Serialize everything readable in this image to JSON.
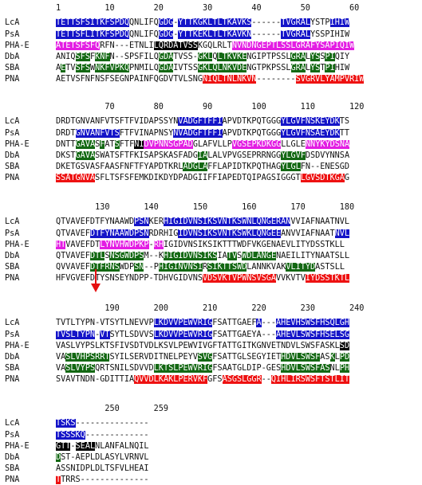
{
  "colors": {
    "b": "#1414c8",
    "g": "#136813",
    "m": "#e31de3",
    "k": "#000000",
    "r": "#ee1111"
  },
  "blocks": [
    {
      "ruler": "1         10        20        30        40        50        60",
      "rows": [
        {
          "name": "LcA",
          "segs": [
            [
              "b",
              "TETTSFSITKFSPDQ"
            ],
            [
              "n",
              "QNLIFQ"
            ],
            [
              "b",
              "GDG"
            ],
            [
              "n",
              "-"
            ],
            [
              "b",
              "YTTKGKLTLTKAVKS"
            ],
            [
              "n",
              "------"
            ],
            [
              "b",
              "TVGRAL"
            ],
            [
              "n",
              "YSTP"
            ],
            [
              "b",
              "IHIW"
            ]
          ]
        },
        {
          "name": "PsA",
          "segs": [
            [
              "b",
              "TETTSFLITKFSPDQ"
            ],
            [
              "n",
              "QNLIFQ"
            ],
            [
              "b",
              "GDG"
            ],
            [
              "n",
              "-"
            ],
            [
              "b",
              "YTTKEKLTLTKAVKN"
            ],
            [
              "n",
              "------"
            ],
            [
              "b",
              "TVGRAL"
            ],
            [
              "n",
              "YSSPIHIW"
            ]
          ]
        },
        {
          "name": "PHA-E",
          "segs": [
            [
              "m",
              "ATETSFSFQ"
            ],
            [
              "n",
              "RFN---ETNLI"
            ],
            [
              "k",
              "LQRDATVSS"
            ],
            [
              "n",
              "KGQLRLT"
            ],
            [
              "m",
              "NVNDNGEPTLSS"
            ],
            [
              "m",
              "LGRAFYSAPIQIW"
            ]
          ]
        },
        {
          "name": "DbA",
          "segs": [
            [
              "n",
              "ANIQ"
            ],
            [
              "g",
              "SFS"
            ],
            [
              "n",
              "F"
            ],
            [
              "g",
              "KNF"
            ],
            [
              "n",
              "N--SPSFILQ"
            ],
            [
              "g",
              "GDA"
            ],
            [
              "n",
              "TVSS-"
            ],
            [
              "g",
              "GKL"
            ],
            [
              "n",
              "Q"
            ],
            [
              "g",
              "LTKVKE"
            ],
            [
              "n",
              "NGIPTPSSL"
            ],
            [
              "g",
              "GRA"
            ],
            [
              "n",
              "L"
            ],
            [
              "g",
              "YS"
            ],
            [
              "n",
              "S"
            ],
            [
              "g",
              "PI"
            ],
            [
              "n",
              "QIY"
            ]
          ]
        },
        {
          "name": "SBA",
          "segs": [
            [
              "n",
              "A"
            ],
            [
              "g",
              "E"
            ],
            [
              "n",
              "TV"
            ],
            [
              "g",
              "SFS"
            ],
            [
              "n",
              "W"
            ],
            [
              "g",
              "NKFVPK"
            ],
            [
              "g",
              "Q"
            ],
            [
              "n",
              "PNMILQ"
            ],
            [
              "g",
              "GDA"
            ],
            [
              "n",
              "IVTSS"
            ],
            [
              "g",
              "GKLQLNKVDE"
            ],
            [
              "n",
              "NGTPKPSSL"
            ],
            [
              "g",
              "GRA"
            ],
            [
              "n",
              "L"
            ],
            [
              "g",
              "YS"
            ],
            [
              "n",
              "T"
            ],
            [
              "g",
              "PI"
            ],
            [
              "n",
              "HIW"
            ]
          ]
        },
        {
          "name": "PNA",
          "segs": [
            [
              "n",
              "AETVSFNFNSFSEGNPAINFQGDVTVLSNG"
            ],
            [
              "r",
              "NIQLTNLNKVN"
            ],
            [
              "n",
              "--------"
            ],
            [
              "r",
              "SVGRVLYAMPVRIW"
            ]
          ]
        }
      ]
    },
    {
      "ruler": "          70        80        90        100       110       120",
      "rows": [
        {
          "name": "LcA",
          "segs": [
            [
              "n",
              "DRDTGNVANFVTSFTFVIDAPSSYN"
            ],
            [
              "b",
              "VADGFTFFI"
            ],
            [
              "n",
              "APVDTKPQTGGG"
            ],
            [
              "b",
              "YLGVFNSKEYDK"
            ],
            [
              "n",
              "TS"
            ]
          ]
        },
        {
          "name": "PsA",
          "segs": [
            [
              "n",
              "DRDT"
            ],
            [
              "b",
              "GNVANFVTS"
            ],
            [
              "n",
              "FTFVINAPNSY"
            ],
            [
              "b",
              "NVADGFTFFI"
            ],
            [
              "n",
              "APVDTKPQTGGG"
            ],
            [
              "b",
              "YLGVFNSAEYDK"
            ],
            [
              "n",
              "TT"
            ]
          ]
        },
        {
          "name": "PHA-E",
          "segs": [
            [
              "n",
              "DNTT"
            ],
            [
              "g",
              "GAVA"
            ],
            [
              "n",
              "S"
            ],
            [
              "g",
              "F"
            ],
            [
              "n",
              "AT"
            ],
            [
              "g",
              "S"
            ],
            [
              "n",
              "FTF"
            ],
            [
              "k",
              "NI"
            ],
            [
              "m",
              "DVPNNSGPAD"
            ],
            [
              "n",
              "GLAFVLLP"
            ],
            [
              "m",
              "VGSEPKDKGG"
            ],
            [
              "n",
              "LLGLE"
            ],
            [
              "m",
              "NNYKYDSNA"
            ]
          ]
        },
        {
          "name": "DbA",
          "segs": [
            [
              "n",
              "DKST"
            ],
            [
              "g",
              "GAVA"
            ],
            [
              "n",
              "SWATSFTFKISAPSKASFADG"
            ],
            [
              "g",
              "IA"
            ],
            [
              "n",
              "LALVPVGSEPRRNGG"
            ],
            [
              "g",
              "YLGVF"
            ],
            [
              "n",
              "DSDVYNNSA"
            ]
          ]
        },
        {
          "name": "SBA",
          "segs": [
            [
              "n",
              "DKETGSVASFAASFNFTFYAPDTKRL"
            ],
            [
              "g",
              "ADG"
            ],
            [
              "g",
              "LA"
            ],
            [
              "n",
              "FFLAPIDTKPQTHAG"
            ],
            [
              "g",
              "YLGL"
            ],
            [
              "n",
              "FN--ENESGD"
            ]
          ]
        },
        {
          "name": "PNA",
          "segs": [
            [
              "r",
              "SSATGNVA"
            ],
            [
              "n",
              "SFLTSFSFEMKDIKDYDPADGIIFFIAPEDTQIPAGSIGGGT"
            ],
            [
              "r",
              "LGVSDTKGA"
            ],
            [
              "n",
              "G"
            ]
          ]
        }
      ]
    },
    {
      "ruler": "        130       140       150       160       170       180",
      "rows": [
        {
          "name": "LcA",
          "segs": [
            [
              "n",
              "QTVAVEFDTFYNAAWD"
            ],
            [
              "b",
              "PSN"
            ],
            [
              "n",
              "KER"
            ],
            [
              "b",
              "HIGIDVNSIKSVNTKSWNLQNGERAN"
            ],
            [
              "n",
              "VVIAFNAATNVL"
            ]
          ]
        },
        {
          "name": "PsA",
          "segs": [
            [
              "n",
              "QTVAVEF"
            ],
            [
              "b",
              "DTFYNAAWDPSN"
            ],
            [
              "n",
              "RDRHIG"
            ],
            [
              "b",
              "IDVNSIKSVNTKSWKLQNGEE"
            ],
            [
              "n",
              "ANVVIAFNAAT"
            ],
            [
              "b",
              "NVL"
            ]
          ]
        },
        {
          "name": "PHA-E",
          "segs": [
            [
              "m",
              "HT"
            ],
            [
              "n",
              "VAVEFDT"
            ],
            [
              "m",
              "LYNVHWDPKP"
            ],
            [
              "n",
              "-"
            ],
            [
              "m",
              "RH"
            ],
            [
              "n",
              "IGIDVNSIKSIKTTTWDFVKGENAEVLITYDSSTKLL"
            ]
          ]
        },
        {
          "name": "DbA",
          "segs": [
            [
              "n",
              "QTVAVEF"
            ],
            [
              "g",
              "DTL"
            ],
            [
              "n",
              "S"
            ],
            [
              "g",
              "NSGWDPS"
            ],
            [
              "n",
              "M--K"
            ],
            [
              "g",
              "HIGIDVNSIKS"
            ],
            [
              "n",
              "IA"
            ],
            [
              "g",
              "TV"
            ],
            [
              "n",
              "S"
            ],
            [
              "g",
              "WDLANGE"
            ],
            [
              "n",
              "NAEILITYNAATSLL"
            ]
          ]
        },
        {
          "name": "SBA",
          "segs": [
            [
              "n",
              "QVVAVEF"
            ],
            [
              "g",
              "DTFRNS"
            ],
            [
              "n",
              "WDP"
            ],
            [
              "g",
              "SN"
            ],
            [
              "n",
              "--P"
            ],
            [
              "g",
              "HIGINVNSI"
            ],
            [
              "n",
              "R"
            ],
            [
              "g",
              "SIKTTSWD"
            ],
            [
              "n",
              "LANNKVAK"
            ],
            [
              "g",
              "VLITYD"
            ],
            [
              "n",
              "ASTSLL"
            ]
          ]
        },
        {
          "name": "PNA",
          "segs": [
            [
              "n",
              "HFVGVEFDTYSNSEYNDPP-TDHVGIDVNS"
            ],
            [
              "r",
              "VDSVKTVPWNSVSGA"
            ],
            [
              "n",
              "VVKVTV"
            ],
            [
              "r",
              "IYDSSTKTL"
            ]
          ]
        }
      ]
    },
    {
      "ruler": "          190       200       210       220       230       240",
      "rows": [
        {
          "name": "LcA",
          "segs": [
            [
              "n",
              "TVTLTYPN-VTSYTLNEVVP"
            ],
            [
              "b",
              "LKDVVPEWVRIG"
            ],
            [
              "n",
              "FSATTGAEF"
            ],
            [
              "b",
              "A"
            ],
            [
              "n",
              "---"
            ],
            [
              "b",
              "AHEVHSWSFHSQLGH"
            ]
          ]
        },
        {
          "name": "PsA",
          "segs": [
            [
              "b",
              "TVSLTYPN"
            ],
            [
              "n",
              "-"
            ],
            [
              "b",
              "VT"
            ],
            [
              "n",
              "SYTLSDVVS"
            ],
            [
              "b",
              "LKDVVPEWVRIG"
            ],
            [
              "n",
              "FSATTGAEYA---"
            ],
            [
              "b",
              "AHEVLSWSFHSELSG"
            ]
          ]
        },
        {
          "name": "PHA-E",
          "segs": [
            [
              "n",
              "VASLVYPSLKTSFIVSDTVDLKSVLPEWVIVGFTATTGITKGNVETNDVLSWSFASKL"
            ],
            [
              "k",
              "SD"
            ]
          ]
        },
        {
          "name": "DbA",
          "segs": [
            [
              "n",
              "VA"
            ],
            [
              "g",
              "SLVHPSRRT"
            ],
            [
              "n",
              "SYILSERVDITNELPEYV"
            ],
            [
              "g",
              "SVG"
            ],
            [
              "n",
              "FSATTGLSEGYIET"
            ],
            [
              "g",
              "HDVLSWSF"
            ],
            [
              "n",
              "AS"
            ],
            [
              "g",
              "K"
            ],
            [
              "n",
              "L"
            ],
            [
              "g",
              "PD"
            ]
          ]
        },
        {
          "name": "SBA",
          "segs": [
            [
              "n",
              "VA"
            ],
            [
              "g",
              "SLVYPS"
            ],
            [
              "n",
              "QRTSNILSDVVD"
            ],
            [
              "g",
              "LKTSLPEWVRIG"
            ],
            [
              "n",
              "FSAATGLDIP-GES"
            ],
            [
              "g",
              "HDVLSWSFAS"
            ],
            [
              "n",
              "NL"
            ],
            [
              "g",
              "PH"
            ]
          ]
        },
        {
          "name": "PNA",
          "segs": [
            [
              "n",
              "SVAVTNDN-GDITTIA"
            ],
            [
              "r",
              "QVVDLKAKLPERVKF"
            ],
            [
              "n",
              "GFS"
            ],
            [
              "r",
              "ASGSLGGR"
            ],
            [
              "n",
              "--"
            ],
            [
              "r",
              "QIHLIRSWSFTSTLIT"
            ]
          ]
        }
      ]
    },
    {
      "ruler": "          250       259",
      "rows": [
        {
          "name": "LcA",
          "segs": [
            [
              "b",
              "TSKS"
            ],
            [
              "n",
              "---------------"
            ]
          ]
        },
        {
          "name": "PsA",
          "segs": [
            [
              "b",
              "TSSSKQ"
            ],
            [
              "n",
              "-------------"
            ]
          ]
        },
        {
          "name": "PHA-E",
          "segs": [
            [
              "k",
              "GTT"
            ],
            [
              "n",
              "-"
            ],
            [
              "k",
              "SEAL"
            ],
            [
              "n",
              "NLANFALNQIL"
            ]
          ]
        },
        {
          "name": "DbA",
          "segs": [
            [
              "g",
              "D"
            ],
            [
              "n",
              "ST-AEPLDLASYLVRNVL"
            ]
          ]
        },
        {
          "name": "SBA",
          "segs": [
            [
              "n",
              "ASSNIDPLDLTSFVLHEAI"
            ]
          ]
        },
        {
          "name": "PNA",
          "segs": [
            [
              "r",
              "T"
            ],
            [
              "n",
              "TRRS--------------"
            ]
          ]
        }
      ]
    }
  ]
}
